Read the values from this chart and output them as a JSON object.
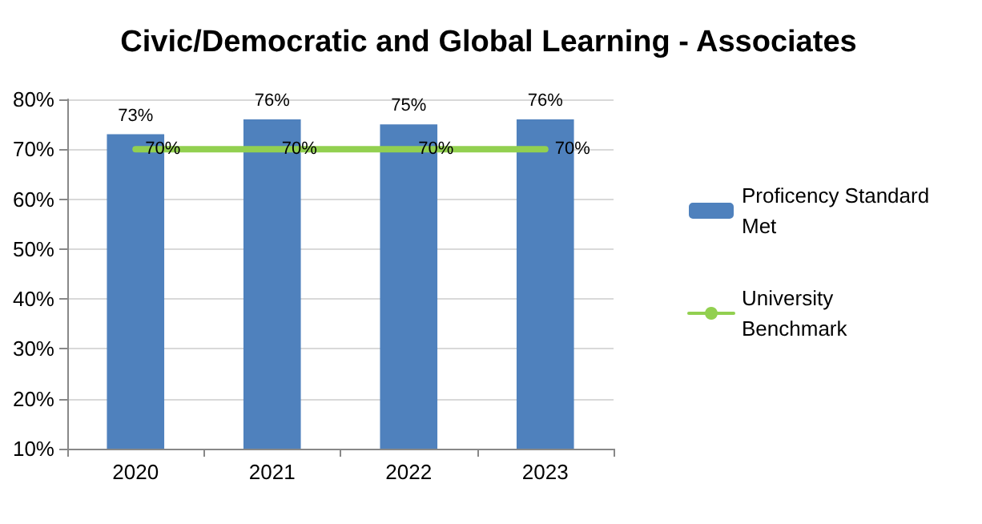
{
  "chart_data": {
    "type": "bar",
    "title": "Civic/Democratic and Global Learning - Associates",
    "categories": [
      "2020",
      "2021",
      "2022",
      "2023"
    ],
    "series": [
      {
        "name": "Proficency Standard Met",
        "color": "#4f81bd",
        "values": [
          73,
          76,
          75,
          76
        ],
        "value_labels": [
          "73%",
          "76%",
          "75%",
          "76%"
        ]
      },
      {
        "name": "University Benchmark",
        "type": "line",
        "color": "#92d050",
        "values": [
          70,
          70,
          70,
          70
        ],
        "value_labels": [
          "70%",
          "70%",
          "70%",
          "70%"
        ],
        "marker": "none",
        "line_style": "solid"
      }
    ],
    "ylim": [
      10,
      80
    ],
    "yticks": [
      {
        "value": 10,
        "label": "10%"
      },
      {
        "value": 20,
        "label": "20%"
      },
      {
        "value": 30,
        "label": "30%"
      },
      {
        "value": 40,
        "label": "40%"
      },
      {
        "value": 50,
        "label": "50%"
      },
      {
        "value": 60,
        "label": "60%"
      },
      {
        "value": 70,
        "label": "70%"
      },
      {
        "value": 80,
        "label": "80%"
      }
    ],
    "grid": "y",
    "legend": "right"
  }
}
